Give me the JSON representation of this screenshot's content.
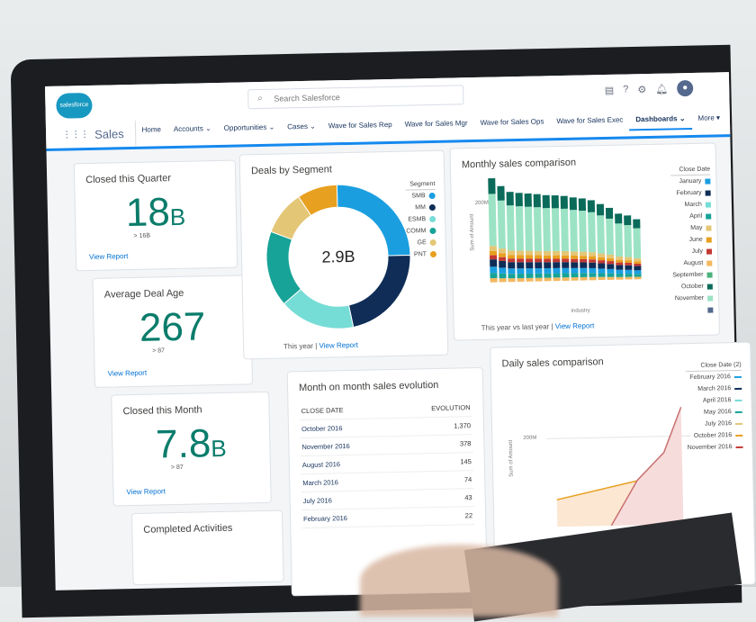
{
  "header": {
    "logo": "salesforce",
    "search_placeholder": "Search Salesforce",
    "icons": [
      "notes-icon",
      "help-icon",
      "gear-icon",
      "bell-icon",
      "avatar-icon"
    ]
  },
  "nav": {
    "app_name": "Sales",
    "items": [
      {
        "label": "Home"
      },
      {
        "label": "Accounts ⌄"
      },
      {
        "label": "Opportunities ⌄"
      },
      {
        "label": "Cases ⌄"
      },
      {
        "label": "Wave for Sales Rep"
      },
      {
        "label": "Wave for Sales Mgr"
      },
      {
        "label": "Wave for Sales Ops"
      },
      {
        "label": "Wave for Sales Exec"
      },
      {
        "label": "Dashboards ⌄",
        "active": true
      },
      {
        "label": "More ▾"
      }
    ]
  },
  "kpis": [
    {
      "title": "Closed this Quarter",
      "value": "18",
      "unit": "B",
      "sub": "> 16B",
      "link": "View Report"
    },
    {
      "title": "Average Deal Age",
      "value": "267",
      "unit": "",
      "sub": "> 87",
      "link": "View Report"
    },
    {
      "title": "Closed this Month",
      "value": "7.8",
      "unit": "B",
      "sub": "> 87",
      "link": "View Report"
    },
    {
      "title": "Completed Activities"
    }
  ],
  "donut": {
    "title": "Deals by Segment",
    "center": "2.9B",
    "legend_title": "Segment",
    "footer_text": "This year | ",
    "footer_link": "View Report",
    "segments": [
      {
        "name": "SMB",
        "share": 0.25,
        "color": "#1b9ee0"
      },
      {
        "name": "MM",
        "share": 0.22,
        "color": "#0f2d57"
      },
      {
        "name": "ESMB",
        "share": 0.17,
        "color": "#76dcd6"
      },
      {
        "name": "COMM",
        "share": 0.17,
        "color": "#17a397"
      },
      {
        "name": "GE",
        "share": 0.1,
        "color": "#e4c677"
      },
      {
        "name": "PNT",
        "share": 0.09,
        "color": "#e8a020"
      }
    ]
  },
  "monthly": {
    "title": "Monthly sales comparison",
    "ylabel": "Sum of Amount",
    "ytick": "200M",
    "xlabel": "Industry",
    "legend_title": "Close Date",
    "footer_text": "This year vs last year | ",
    "footer_link": "View Report",
    "legend": [
      {
        "name": "January",
        "color": "#1b9ee0"
      },
      {
        "name": "February",
        "color": "#0f2d57"
      },
      {
        "name": "March",
        "color": "#76dcd6"
      },
      {
        "name": "April",
        "color": "#17a397"
      },
      {
        "name": "May",
        "color": "#e4c677"
      },
      {
        "name": "June",
        "color": "#e8a020"
      },
      {
        "name": "July",
        "color": "#c23934"
      },
      {
        "name": "August",
        "color": "#f4b860"
      },
      {
        "name": "September",
        "color": "#4bb27a"
      },
      {
        "name": "October",
        "color": "#0b6b5a"
      },
      {
        "name": "November",
        "color": "#9be3c4"
      },
      {
        "name": "",
        "color": "#54698d"
      }
    ],
    "bars": [
      260,
      240,
      225,
      222,
      220,
      218,
      215,
      214,
      212,
      208,
      205,
      200,
      190,
      180,
      165,
      160,
      150
    ],
    "stack_colors": [
      "#f4b860",
      "#17a397",
      "#1b9ee0",
      "#0f2d57",
      "#c23934",
      "#e8a020",
      "#e4c677",
      "#9be3c4",
      "#0b6b5a"
    ]
  },
  "table": {
    "title": "Month on month sales evolution",
    "headers": [
      "CLOSE DATE",
      "EVOLUTION"
    ],
    "rows": [
      [
        "October 2016",
        "1,370"
      ],
      [
        "November 2016",
        "378"
      ],
      [
        "August 2016",
        "145"
      ],
      [
        "March 2016",
        "74"
      ],
      [
        "July 2016",
        "43"
      ],
      [
        "February 2016",
        "22"
      ]
    ]
  },
  "daily": {
    "title": "Daily sales comparison",
    "ylabel": "Sum of Amount",
    "ytick": "200M",
    "legend_title": "Close Date (2)",
    "legend": [
      {
        "name": "February 2016",
        "color": "#1b9ee0"
      },
      {
        "name": "March 2016",
        "color": "#0f2d57"
      },
      {
        "name": "April 2016",
        "color": "#76dcd6"
      },
      {
        "name": "May 2016",
        "color": "#17a397"
      },
      {
        "name": "July 2016",
        "color": "#e4c677"
      },
      {
        "name": "October 2016",
        "color": "#e8a020"
      },
      {
        "name": "November 2016",
        "color": "#c23934"
      }
    ]
  }
}
